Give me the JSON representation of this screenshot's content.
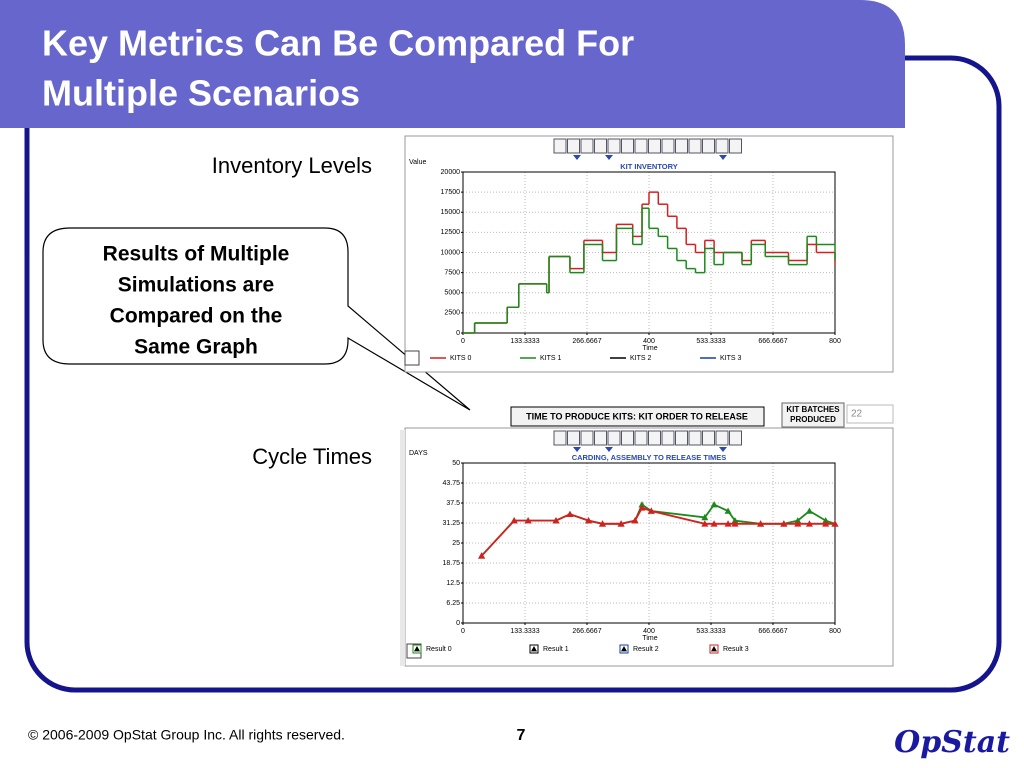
{
  "slide": {
    "title": [
      "Key Metrics Can Be Compared For",
      "Multiple Scenarios"
    ],
    "label_inventory": "Inventory Levels",
    "label_cycle": "Cycle Times",
    "callout": [
      "Results of Multiple",
      "Simulations are",
      "Compared on the",
      "Same Graph"
    ],
    "report_button": "TIME TO PRODUCE KITS: KIT ORDER TO RELEASE",
    "batches_label": [
      "KIT BATCHES",
      "PRODUCED"
    ],
    "batches_value": 22,
    "footer": "© 2006-2009 OpStat Group Inc.  All rights reserved.",
    "page_number": 7,
    "logo": "OpStat"
  },
  "chart_data": [
    {
      "type": "line",
      "title": "KIT INVENTORY",
      "ylabel": "Value",
      "xlabel": "Time",
      "line_style": "step",
      "grid": true,
      "x": [
        0,
        25,
        95,
        120,
        180,
        185,
        230,
        260,
        300,
        330,
        365,
        385,
        400,
        420,
        440,
        460,
        480,
        500,
        520,
        540,
        560,
        600,
        620,
        650,
        700,
        740,
        760,
        800
      ],
      "xlim": [
        0,
        800
      ],
      "xticks": [
        0,
        133.3333,
        266.6667,
        400,
        533.3333,
        666.6667,
        800
      ],
      "ylim": [
        0,
        20000
      ],
      "yticks": [
        0,
        2500,
        5000,
        7500,
        10000,
        12500,
        15000,
        17500,
        20000
      ],
      "series": [
        {
          "name": "KITS 0",
          "color": "#d42020",
          "values": [
            0,
            1250,
            3200,
            6100,
            5000,
            9500,
            8000,
            11500,
            10000,
            13500,
            12000,
            16000,
            17500,
            16000,
            14500,
            13000,
            11000,
            10000,
            11500,
            10000,
            10000,
            9000,
            11500,
            10000,
            9000,
            11000,
            10000,
            8500
          ]
        },
        {
          "name": "KITS 1",
          "color": "#1a8a1a",
          "values": [
            0,
            1250,
            3200,
            6100,
            5000,
            9500,
            7500,
            11000,
            9000,
            13000,
            11000,
            15500,
            13000,
            12000,
            10500,
            9000,
            8000,
            7500,
            10500,
            8500,
            10000,
            8500,
            11000,
            9500,
            8500,
            12000,
            11000,
            9000
          ]
        },
        {
          "name": "KITS 2",
          "color": "#000000",
          "values": [
            null,
            null,
            null,
            null,
            null,
            null,
            null,
            null,
            null,
            null,
            null,
            null,
            null,
            null,
            null,
            null,
            null,
            null,
            null,
            null,
            null,
            null,
            null,
            null,
            null,
            null,
            null,
            null
          ]
        },
        {
          "name": "KITS 3",
          "color": "#1a3aaa",
          "values": [
            null,
            null,
            null,
            null,
            null,
            null,
            null,
            null,
            null,
            null,
            null,
            null,
            null,
            null,
            null,
            null,
            null,
            null,
            null,
            null,
            null,
            null,
            null,
            null,
            null,
            null,
            null,
            null
          ]
        }
      ]
    },
    {
      "type": "line",
      "title": "CARDING, ASSEMBLY TO RELEASE TIMES",
      "ylabel": "DAYS",
      "xlabel": "Time",
      "marker": "triangle",
      "grid": true,
      "x": [
        40,
        110,
        140,
        200,
        230,
        270,
        300,
        340,
        370,
        385,
        405,
        520,
        540,
        570,
        585,
        640,
        690,
        720,
        745,
        780,
        800
      ],
      "xlim": [
        0,
        800
      ],
      "xticks": [
        0,
        133.3333,
        266.6667,
        400,
        533.3333,
        666.6667,
        800
      ],
      "ylim": [
        0,
        50
      ],
      "yticks": [
        0,
        6.25,
        12.5,
        18.75,
        25,
        31.25,
        37.5,
        43.75,
        50
      ],
      "series": [
        {
          "name": "Result 0",
          "color": "#1a8a1a",
          "values": [
            21,
            32,
            32,
            32,
            34,
            32,
            31,
            31,
            32,
            37,
            35,
            33,
            37,
            35,
            32,
            31,
            31,
            32,
            35,
            32,
            31
          ]
        },
        {
          "name": "Result 1",
          "color": "#000000",
          "values": [
            null,
            null,
            null,
            null,
            null,
            null,
            null,
            null,
            null,
            null,
            null,
            null,
            null,
            null,
            null,
            null,
            null,
            null,
            null,
            null,
            null
          ]
        },
        {
          "name": "Result 2",
          "color": "#1a3aaa",
          "values": [
            null,
            null,
            null,
            null,
            null,
            null,
            null,
            null,
            null,
            null,
            null,
            null,
            null,
            null,
            null,
            null,
            null,
            null,
            null,
            null,
            null
          ]
        },
        {
          "name": "Result 3",
          "color": "#d42020",
          "values": [
            21,
            32,
            32,
            32,
            34,
            32,
            31,
            31,
            32,
            36,
            35,
            31,
            31,
            31,
            31,
            31,
            31,
            31,
            31,
            31,
            31
          ]
        }
      ]
    }
  ]
}
